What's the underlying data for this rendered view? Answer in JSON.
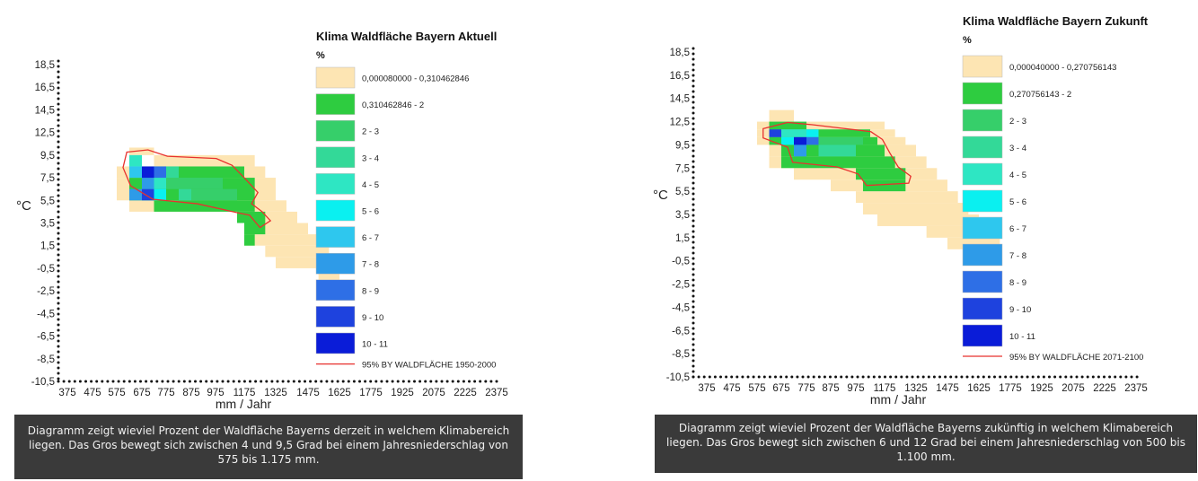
{
  "chart_data": [
    {
      "type": "heatmap",
      "title": "Klima Waldfläche Bayern Aktuell",
      "legend_title": "%",
      "legend_entries": [
        {
          "label": "0,000080000 - 0,310462846",
          "color": "#fde5b3"
        },
        {
          "label": "0,310462846 - 2",
          "color": "#2ecc40"
        },
        {
          "label": "2 - 3",
          "color": "#36cf6a"
        },
        {
          "label": "3 - 4",
          "color": "#33d998"
        },
        {
          "label": "4 - 5",
          "color": "#2ee6c3"
        },
        {
          "label": "5 - 6",
          "color": "#0af0f0"
        },
        {
          "label": "6 - 7",
          "color": "#2ec7ee"
        },
        {
          "label": "7 - 8",
          "color": "#2e9be8"
        },
        {
          "label": "8 - 9",
          "color": "#2e6fe6"
        },
        {
          "label": "9 - 10",
          "color": "#1e42de"
        },
        {
          "label": "10 - 11",
          "color": "#0a1cd8"
        }
      ],
      "outline_label": "95% BY WALDFLÄCHE 1950-2000",
      "outline_color": "#e8312e",
      "xlabel": "mm / Jahr",
      "ylabel": "°C",
      "x_ticks": [
        "375",
        "475",
        "575",
        "675",
        "775",
        "875",
        "975",
        "1175",
        "1325",
        "1475",
        "1625",
        "1775",
        "1925",
        "2075",
        "2225",
        "2375"
      ],
      "y_ticks": [
        "18,5",
        "16,5",
        "14,5",
        "12,5",
        "9,5",
        "7,5",
        "5,5",
        "3,5",
        "1,5",
        "-0,5",
        "-2,5",
        "-4,5",
        "-6,5",
        "-8,5",
        "-10,5"
      ],
      "xlim": [
        375,
        2375
      ],
      "ylim": [
        -10.5,
        18.5
      ],
      "caption": "Diagramm zeigt wieviel Prozent der Waldfläche Bayerns derzeit in welchem Klimabereich liegen. Das Gros bewegt sich zwischen 4 und 9,5 Grad bei einem Jahresniederschlag von 575 bis 1.175 mm.",
      "cells": [
        {
          "x0": 625,
          "x1": 725,
          "y0": 9.5,
          "y1": 10.5,
          "cls": 0
        },
        {
          "x0": 725,
          "x1": 1225,
          "y0": 8.5,
          "y1": 9.5,
          "cls": 0
        },
        {
          "x0": 575,
          "x1": 1275,
          "y0": 7.5,
          "y1": 8.5,
          "cls": 0
        },
        {
          "x0": 575,
          "x1": 1325,
          "y0": 5.5,
          "y1": 7.5,
          "cls": 0
        },
        {
          "x0": 625,
          "x1": 1375,
          "y0": 4.5,
          "y1": 5.5,
          "cls": 0
        },
        {
          "x0": 1125,
          "x1": 1425,
          "y0": 3.5,
          "y1": 4.5,
          "cls": 0
        },
        {
          "x0": 1175,
          "x1": 1475,
          "y0": 2.5,
          "y1": 3.5,
          "cls": 0
        },
        {
          "x0": 1175,
          "x1": 1525,
          "y0": 1.5,
          "y1": 2.5,
          "cls": 0
        },
        {
          "x0": 1275,
          "x1": 1575,
          "y0": 0.5,
          "y1": 1.5,
          "cls": 0
        },
        {
          "x0": 1325,
          "x1": 1625,
          "y0": -0.5,
          "y1": 0.5,
          "cls": 0
        },
        {
          "x0": 1525,
          "x1": 1625,
          "y0": -1.5,
          "y1": -0.5,
          "cls": 0
        },
        {
          "x0": 625,
          "x1": 1175,
          "y0": 7.5,
          "y1": 8.5,
          "cls": 1
        },
        {
          "x0": 625,
          "x1": 1225,
          "y0": 5.5,
          "y1": 7.5,
          "cls": 1
        },
        {
          "x0": 725,
          "x1": 1225,
          "y0": 4.5,
          "y1": 5.5,
          "cls": 1
        },
        {
          "x0": 1125,
          "x1": 1275,
          "y0": 3.5,
          "y1": 4.5,
          "cls": 1
        },
        {
          "x0": 1175,
          "x1": 1275,
          "y0": 2.5,
          "y1": 3.5,
          "cls": 1
        },
        {
          "x0": 1175,
          "x1": 1225,
          "y0": 1.5,
          "y1": 2.5,
          "cls": 1
        },
        {
          "x0": 775,
          "x1": 1025,
          "y0": 6.5,
          "y1": 7.5,
          "cls": 2
        },
        {
          "x0": 875,
          "x1": 1125,
          "y0": 5.5,
          "y1": 6.5,
          "cls": 2
        },
        {
          "x0": 825,
          "x1": 875,
          "y0": 5.5,
          "y1": 6.5,
          "cls": 3
        },
        {
          "x0": 725,
          "x1": 825,
          "y0": 7.5,
          "y1": 8.5,
          "cls": 3
        },
        {
          "x0": 625,
          "x1": 675,
          "y0": 8.5,
          "y1": 9.5,
          "cls": 4
        },
        {
          "x0": 725,
          "x1": 775,
          "y0": 6.5,
          "y1": 7.5,
          "cls": 4
        },
        {
          "x0": 675,
          "x1": 775,
          "y0": 5.5,
          "y1": 6.5,
          "cls": 5
        },
        {
          "x0": 625,
          "x1": 675,
          "y0": 7.5,
          "y1": 8.5,
          "cls": 6
        },
        {
          "x0": 675,
          "x1": 725,
          "y0": 6.5,
          "y1": 7.5,
          "cls": 7
        },
        {
          "x0": 625,
          "x1": 675,
          "y0": 5.5,
          "y1": 6.5,
          "cls": 7
        },
        {
          "x0": 725,
          "x1": 775,
          "y0": 7.5,
          "y1": 8.5,
          "cls": 8
        },
        {
          "x0": 675,
          "x1": 725,
          "y0": 5.5,
          "y1": 6.5,
          "cls": 9
        },
        {
          "x0": 675,
          "x1": 725,
          "y0": 7.5,
          "y1": 8.5,
          "cls": 10
        }
      ],
      "outline": [
        [
          615,
          9.9
        ],
        [
          700,
          10.2
        ],
        [
          780,
          9.4
        ],
        [
          980,
          9.2
        ],
        [
          1090,
          8.6
        ],
        [
          1180,
          7.4
        ],
        [
          1240,
          6.2
        ],
        [
          1210,
          5.2
        ],
        [
          1260,
          4.5
        ],
        [
          1300,
          3.7
        ],
        [
          1250,
          3.1
        ],
        [
          1200,
          4.2
        ],
        [
          1130,
          4.4
        ],
        [
          900,
          5.2
        ],
        [
          720,
          5.6
        ],
        [
          630,
          6.8
        ],
        [
          600,
          8.4
        ]
      ]
    },
    {
      "type": "heatmap",
      "title": "Klima Waldfläche Bayern Zukunft",
      "legend_title": "%",
      "legend_entries": [
        {
          "label": "0,000040000 - 0,270756143",
          "color": "#fde5b3"
        },
        {
          "label": "0,270756143 - 2",
          "color": "#2ecc40"
        },
        {
          "label": "2 - 3",
          "color": "#36cf6a"
        },
        {
          "label": "3 - 4",
          "color": "#33d998"
        },
        {
          "label": "4 - 5",
          "color": "#2ee6c3"
        },
        {
          "label": "5 - 6",
          "color": "#0af0f0"
        },
        {
          "label": "6 - 7",
          "color": "#2ec7ee"
        },
        {
          "label": "7 - 8",
          "color": "#2e9be8"
        },
        {
          "label": "8 - 9",
          "color": "#2e6fe6"
        },
        {
          "label": "9 - 10",
          "color": "#1e42de"
        },
        {
          "label": "10 - 11",
          "color": "#0a1cd8"
        }
      ],
      "outline_label": "95% BY WALDFLÄCHE 2071-2100",
      "outline_color": "#e8312e",
      "xlabel": "mm / Jahr",
      "ylabel": "°C",
      "x_ticks": [
        "375",
        "475",
        "575",
        "675",
        "775",
        "875",
        "975",
        "1175",
        "1325",
        "1475",
        "1625",
        "1775",
        "1925",
        "2075",
        "2225",
        "2375"
      ],
      "y_ticks": [
        "18,5",
        "16,5",
        "14,5",
        "12,5",
        "9,5",
        "7,5",
        "5,5",
        "3,5",
        "1,5",
        "-0,5",
        "-2,5",
        "-4,5",
        "-6,5",
        "-8,5",
        "-10,5"
      ],
      "xlim": [
        375,
        2375
      ],
      "ylim": [
        -10.5,
        18.5
      ],
      "caption": "Diagramm zeigt wieviel Prozent der Waldfläche Bayerns zukünftig in welchem Klimabereich liegen. Das Gros bewegt sich zwischen 6 und 12 Grad bei einem Jahresniederschlag von 500 bis 1.100 mm.",
      "cells": [
        {
          "x0": 625,
          "x1": 725,
          "y0": 12.5,
          "y1": 13.5,
          "cls": 0
        },
        {
          "x0": 575,
          "x1": 1175,
          "y0": 11.5,
          "y1": 12.5,
          "cls": 0
        },
        {
          "x0": 575,
          "x1": 1225,
          "y0": 10.5,
          "y1": 11.5,
          "cls": 0
        },
        {
          "x0": 575,
          "x1": 1275,
          "y0": 9.5,
          "y1": 10.5,
          "cls": 0
        },
        {
          "x0": 625,
          "x1": 1325,
          "y0": 8.5,
          "y1": 9.5,
          "cls": 0
        },
        {
          "x0": 625,
          "x1": 1375,
          "y0": 7.5,
          "y1": 8.5,
          "cls": 0
        },
        {
          "x0": 725,
          "x1": 1425,
          "y0": 6.5,
          "y1": 7.5,
          "cls": 0
        },
        {
          "x0": 875,
          "x1": 1475,
          "y0": 5.5,
          "y1": 6.5,
          "cls": 0
        },
        {
          "x0": 975,
          "x1": 1525,
          "y0": 4.5,
          "y1": 5.5,
          "cls": 0
        },
        {
          "x0": 1025,
          "x1": 1575,
          "y0": 3.5,
          "y1": 4.5,
          "cls": 0
        },
        {
          "x0": 1125,
          "x1": 1625,
          "y0": 2.5,
          "y1": 3.5,
          "cls": 0
        },
        {
          "x0": 1375,
          "x1": 1675,
          "y0": 1.5,
          "y1": 2.5,
          "cls": 0
        },
        {
          "x0": 1475,
          "x1": 1725,
          "y0": 0.5,
          "y1": 1.5,
          "cls": 0
        },
        {
          "x0": 1575,
          "x1": 1725,
          "y0": -0.5,
          "y1": 0.5,
          "cls": 0
        },
        {
          "x0": 625,
          "x1": 775,
          "y0": 11.5,
          "y1": 12.5,
          "cls": 1
        },
        {
          "x0": 625,
          "x1": 1075,
          "y0": 10.5,
          "y1": 11.5,
          "cls": 1
        },
        {
          "x0": 625,
          "x1": 1125,
          "y0": 9.5,
          "y1": 10.5,
          "cls": 1
        },
        {
          "x0": 675,
          "x1": 1175,
          "y0": 8.5,
          "y1": 9.5,
          "cls": 1
        },
        {
          "x0": 675,
          "x1": 1225,
          "y0": 7.5,
          "y1": 8.5,
          "cls": 1
        },
        {
          "x0": 975,
          "x1": 1275,
          "y0": 6.5,
          "y1": 7.5,
          "cls": 1
        },
        {
          "x0": 1025,
          "x1": 1275,
          "y0": 5.5,
          "y1": 6.5,
          "cls": 1
        },
        {
          "x0": 775,
          "x1": 1025,
          "y0": 9.5,
          "y1": 10.5,
          "cls": 2
        },
        {
          "x0": 825,
          "x1": 975,
          "y0": 8.5,
          "y1": 9.5,
          "cls": 3
        },
        {
          "x0": 725,
          "x1": 825,
          "y0": 9.5,
          "y1": 10.5,
          "cls": 3
        },
        {
          "x0": 675,
          "x1": 775,
          "y0": 10.5,
          "y1": 11.5,
          "cls": 4
        },
        {
          "x0": 675,
          "x1": 725,
          "y0": 9.5,
          "y1": 10.5,
          "cls": 5
        },
        {
          "x0": 775,
          "x1": 825,
          "y0": 10.5,
          "y1": 11.5,
          "cls": 5
        },
        {
          "x0": 725,
          "x1": 775,
          "y0": 8.5,
          "y1": 9.5,
          "cls": 7
        },
        {
          "x0": 775,
          "x1": 825,
          "y0": 9.5,
          "y1": 10.5,
          "cls": 8
        },
        {
          "x0": 625,
          "x1": 675,
          "y0": 10.5,
          "y1": 11.5,
          "cls": 9
        },
        {
          "x0": 725,
          "x1": 775,
          "y0": 9.5,
          "y1": 10.5,
          "cls": 10
        }
      ],
      "outline": [
        [
          600,
          11.6
        ],
        [
          700,
          12.4
        ],
        [
          800,
          12.1
        ],
        [
          1080,
          11.2
        ],
        [
          1160,
          10.2
        ],
        [
          1200,
          8.8
        ],
        [
          1240,
          7.6
        ],
        [
          1300,
          6.8
        ],
        [
          1290,
          6.2
        ],
        [
          1050,
          6.0
        ],
        [
          990,
          7.0
        ],
        [
          900,
          7.6
        ],
        [
          720,
          8.0
        ],
        [
          700,
          9.3
        ],
        [
          600,
          10.4
        ]
      ]
    }
  ]
}
